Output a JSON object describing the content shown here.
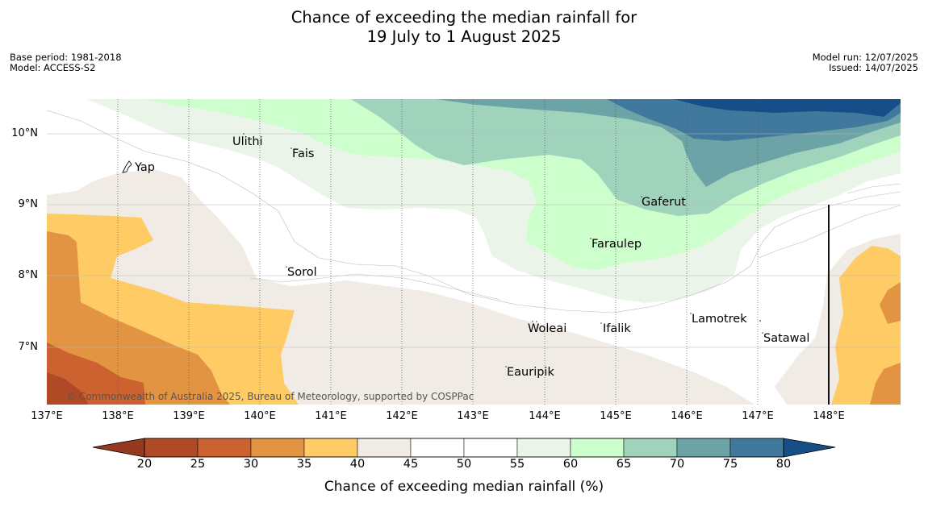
{
  "title_line1": "Chance of exceeding the median rainfall for",
  "title_line2": "19 July to 1 August 2025",
  "meta": {
    "base_period": "Base period: 1981-2018",
    "model": "Model: ACCESS-S2",
    "model_run": "Model run: 12/07/2025",
    "issued": "Issued: 14/07/2025"
  },
  "latitudes": [
    "10°N",
    "9°N",
    "8°N",
    "7°N"
  ],
  "longitudes": [
    "137°E",
    "138°E",
    "139°E",
    "140°E",
    "141°E",
    "142°E",
    "143°E",
    "144°E",
    "145°E",
    "146°E",
    "147°E",
    "148°E"
  ],
  "places": [
    "Ulithi",
    "Fais",
    "Yap",
    "Gaferut",
    "Faraulep",
    "Sorol",
    "Lamotrek",
    "Woleai",
    "Ifalik",
    "Satawal",
    "Eauripik"
  ],
  "copyright": "© Commonwealth of Australia 2025, Bureau of Meteorology, supported by COSPPac",
  "colorbar": {
    "ticks": [
      "20",
      "25",
      "30",
      "35",
      "40",
      "45",
      "50",
      "55",
      "60",
      "65",
      "70",
      "75",
      "80"
    ],
    "colors": [
      "#b04a26",
      "#cb6230",
      "#e29443",
      "#fecb65",
      "#f0ebe5",
      "#ffffff",
      "#ffffff",
      "#ebf4e8",
      "#ccffcc",
      "#9fd3bc",
      "#6ca3a7",
      "#41789d"
    ],
    "under_color": "#96391f",
    "over_color": "#164e88",
    "label": "Chance of exceeding median rainfall (%)"
  }
}
